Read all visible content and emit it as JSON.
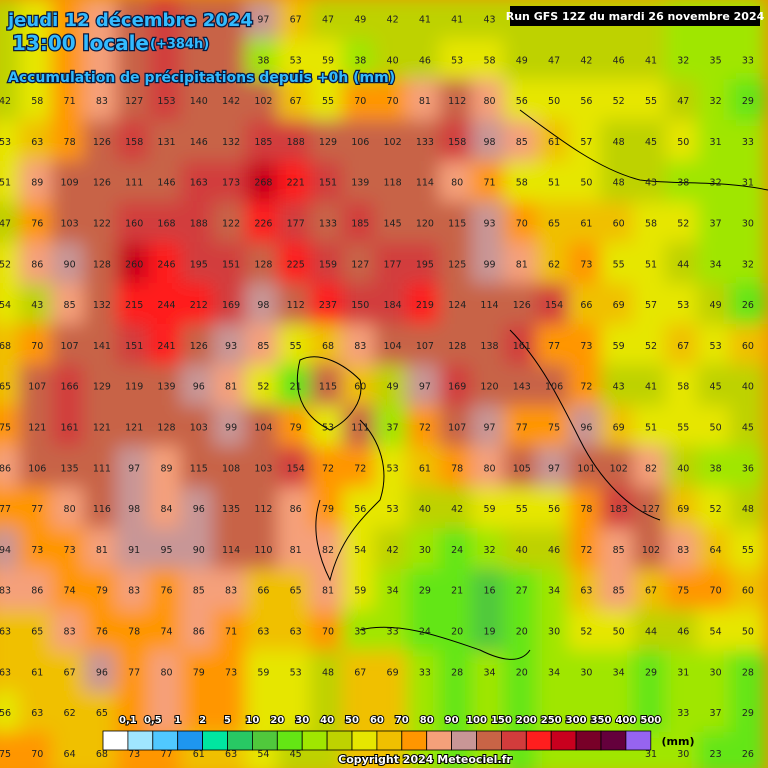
{
  "header": {
    "date": "jeudi 12 décembre 2024",
    "time": "13:00 locale",
    "lead": "(+384h)",
    "subtitle": "Accumulation de précipitations depuis +0h (mm)",
    "run": "Run GFS 12Z du mardi 26 novembre 2024"
  },
  "grid": {
    "rows": [
      [
        null,
        null,
        null,
        null,
        null,
        null,
        null,
        null,
        97,
        67,
        47,
        49,
        42,
        41,
        41,
        43,
        null,
        null,
        null,
        null,
        null,
        null,
        null,
        null
      ],
      [
        null,
        null,
        null,
        null,
        null,
        null,
        null,
        null,
        38,
        53,
        59,
        38,
        40,
        46,
        53,
        58,
        49,
        47,
        42,
        46,
        41,
        32,
        35,
        33
      ],
      [
        42,
        58,
        71,
        83,
        127,
        153,
        140,
        142,
        102,
        67,
        55,
        70,
        70,
        81,
        112,
        80,
        56,
        50,
        56,
        52,
        55,
        47,
        32,
        29
      ],
      [
        53,
        63,
        78,
        126,
        158,
        131,
        146,
        132,
        185,
        188,
        129,
        106,
        102,
        133,
        158,
        98,
        85,
        61,
        57,
        48,
        45,
        50,
        31,
        33
      ],
      [
        51,
        89,
        109,
        126,
        111,
        146,
        163,
        173,
        268,
        221,
        151,
        139,
        118,
        114,
        80,
        71,
        58,
        51,
        50,
        48,
        43,
        38,
        32,
        31
      ],
      [
        47,
        76,
        103,
        122,
        160,
        168,
        188,
        122,
        226,
        177,
        133,
        185,
        145,
        120,
        115,
        93,
        70,
        65,
        61,
        60,
        58,
        52,
        37,
        30
      ],
      [
        52,
        86,
        90,
        128,
        260,
        246,
        195,
        151,
        128,
        225,
        159,
        127,
        177,
        195,
        125,
        99,
        81,
        62,
        73,
        55,
        51,
        44,
        34,
        32
      ],
      [
        54,
        43,
        85,
        132,
        215,
        244,
        212,
        169,
        98,
        112,
        237,
        150,
        184,
        219,
        124,
        114,
        126,
        154,
        66,
        69,
        57,
        53,
        49,
        26
      ],
      [
        68,
        70,
        107,
        141,
        151,
        241,
        126,
        93,
        85,
        55,
        68,
        83,
        104,
        107,
        128,
        138,
        161,
        77,
        73,
        59,
        52,
        67,
        53,
        60
      ],
      [
        65,
        107,
        166,
        129,
        119,
        139,
        96,
        81,
        52,
        21,
        115,
        60,
        49,
        97,
        169,
        120,
        143,
        106,
        72,
        43,
        41,
        58,
        45,
        40
      ],
      [
        75,
        121,
        161,
        121,
        121,
        128,
        103,
        99,
        104,
        79,
        53,
        111,
        37,
        72,
        107,
        97,
        77,
        75,
        96,
        69,
        51,
        55,
        50,
        45
      ],
      [
        86,
        106,
        135,
        111,
        97,
        89,
        115,
        108,
        103,
        154,
        72,
        72,
        53,
        61,
        78,
        80,
        105,
        97,
        101,
        102,
        82,
        40,
        38,
        36
      ],
      [
        77,
        77,
        80,
        116,
        98,
        84,
        96,
        135,
        112,
        86,
        79,
        56,
        53,
        40,
        42,
        59,
        55,
        56,
        78,
        183,
        127,
        69,
        52,
        48
      ],
      [
        94,
        73,
        73,
        81,
        91,
        95,
        90,
        114,
        110,
        81,
        82,
        54,
        42,
        30,
        24,
        32,
        40,
        46,
        72,
        85,
        102,
        83,
        64,
        55
      ],
      [
        83,
        86,
        74,
        79,
        83,
        76,
        85,
        83,
        66,
        65,
        81,
        59,
        34,
        29,
        21,
        16,
        27,
        34,
        63,
        85,
        67,
        75,
        70,
        60
      ],
      [
        63,
        65,
        83,
        76,
        78,
        74,
        86,
        71,
        63,
        63,
        70,
        33,
        33,
        24,
        20,
        19,
        20,
        30,
        52,
        50,
        44,
        46,
        54,
        50
      ],
      [
        63,
        61,
        67,
        96,
        77,
        80,
        79,
        73,
        59,
        53,
        48,
        67,
        69,
        33,
        28,
        34,
        20,
        34,
        30,
        34,
        29,
        31,
        30,
        28
      ],
      [
        56,
        63,
        62,
        65,
        null,
        null,
        null,
        null,
        null,
        null,
        null,
        null,
        null,
        null,
        null,
        null,
        null,
        null,
        null,
        null,
        null,
        33,
        37,
        29
      ],
      [
        75,
        70,
        64,
        68,
        73,
        77,
        61,
        63,
        54,
        45,
        null,
        null,
        null,
        null,
        null,
        null,
        null,
        null,
        null,
        null,
        31,
        30,
        23,
        26
      ]
    ]
  },
  "legend": {
    "unit": "(mm)",
    "items": [
      {
        "label": "0,1",
        "value": 0.1,
        "color": "#ffffff"
      },
      {
        "label": "0,5",
        "value": 0.5,
        "color": "#a0e6ff"
      },
      {
        "label": "1",
        "value": 1,
        "color": "#50c8ff"
      },
      {
        "label": "2",
        "value": 2,
        "color": "#1e96f0"
      },
      {
        "label": "5",
        "value": 5,
        "color": "#00e6a0"
      },
      {
        "label": "10",
        "value": 10,
        "color": "#28c864"
      },
      {
        "label": "20",
        "value": 20,
        "color": "#50c83c"
      },
      {
        "label": "30",
        "value": 30,
        "color": "#64e614"
      },
      {
        "label": "40",
        "value": 40,
        "color": "#a0e600"
      },
      {
        "label": "50",
        "value": 50,
        "color": "#bed200"
      },
      {
        "label": "60",
        "value": 60,
        "color": "#e6e600"
      },
      {
        "label": "70",
        "value": 70,
        "color": "#f0c000"
      },
      {
        "label": "80",
        "value": 80,
        "color": "#ff9600"
      },
      {
        "label": "90",
        "value": 90,
        "color": "#f5a07a"
      },
      {
        "label": "100",
        "value": 100,
        "color": "#c89696"
      },
      {
        "label": "150",
        "value": 150,
        "color": "#c86446"
      },
      {
        "label": "200",
        "value": 200,
        "color": "#d23c3c"
      },
      {
        "label": "250",
        "value": 250,
        "color": "#ff1e1e"
      },
      {
        "label": "300",
        "value": 300,
        "color": "#c8001e"
      },
      {
        "label": "350",
        "value": 350,
        "color": "#780028"
      },
      {
        "label": "400",
        "value": 400,
        "color": "#64003c"
      },
      {
        "label": "500",
        "value": 500,
        "color": "#9664f0"
      }
    ]
  },
  "footer": {
    "copyright": "Copyright 2024 Meteociel.fr"
  }
}
